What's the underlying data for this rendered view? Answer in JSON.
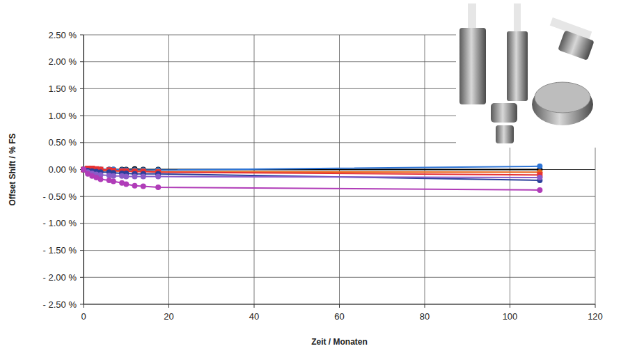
{
  "chart_data": {
    "type": "line",
    "x_label": "Zeit / Monaten",
    "y_label": "Offset Shift / % FS",
    "x": [
      0,
      1,
      2,
      3,
      4,
      6,
      7,
      9,
      10,
      12,
      14,
      17.5,
      107
    ],
    "series": [
      {
        "color": "#000000",
        "marker": "circle",
        "values": [
          0,
          0,
          0,
          0,
          0,
          0,
          0,
          0,
          0,
          0.01,
          0,
          0,
          0
        ]
      },
      {
        "color": "#2e75d6",
        "marker": "circle",
        "values": [
          0,
          0.01,
          0.01,
          0,
          0,
          0,
          0,
          -0.01,
          -0.01,
          -0.01,
          -0.01,
          -0.01,
          0.06
        ]
      },
      {
        "color": "#e8671b",
        "marker": "circle",
        "values": [
          0,
          0,
          -0.01,
          -0.01,
          -0.02,
          -0.02,
          -0.03,
          -0.03,
          -0.03,
          -0.03,
          -0.03,
          -0.04,
          -0.05
        ]
      },
      {
        "color": "#e83232",
        "marker": "square",
        "values": [
          0,
          0.02,
          0.02,
          0.01,
          0,
          -0.01,
          -0.02,
          -0.03,
          -0.03,
          -0.04,
          -0.04,
          -0.05,
          -0.1
        ]
      },
      {
        "color": "#2a3f9a",
        "marker": "circle",
        "values": [
          0,
          -0.02,
          -0.03,
          -0.04,
          -0.05,
          -0.05,
          -0.06,
          -0.07,
          -0.07,
          -0.08,
          -0.08,
          -0.08,
          -0.2
        ]
      },
      {
        "color": "#8a5cc8",
        "marker": "circle",
        "values": [
          0,
          -0.05,
          -0.07,
          -0.09,
          -0.1,
          -0.11,
          -0.12,
          -0.12,
          -0.13,
          -0.13,
          -0.13,
          -0.13,
          -0.15
        ]
      },
      {
        "color": "#b03cb8",
        "marker": "circle",
        "values": [
          0,
          -0.08,
          -0.12,
          -0.15,
          -0.18,
          -0.2,
          -0.22,
          -0.25,
          -0.27,
          -0.3,
          -0.31,
          -0.33,
          -0.38
        ]
      }
    ],
    "xlim": [
      0,
      120
    ],
    "xticks": [
      0,
      20,
      40,
      60,
      80,
      100,
      120
    ],
    "ylim": [
      -2.5,
      2.5
    ],
    "yticks": [
      {
        "value": -2.5,
        "label": "- 2.50 %"
      },
      {
        "value": -2,
        "label": "- 2.00 %"
      },
      {
        "value": -1.5,
        "label": "- 1.50 %"
      },
      {
        "value": -1,
        "label": "- 1.00 %"
      },
      {
        "value": -0.5,
        "label": "- 0.50 %"
      },
      {
        "value": 0,
        "label": "0.00 %"
      },
      {
        "value": 0.5,
        "label": "0.50 %"
      },
      {
        "value": 1,
        "label": "1.00 %"
      },
      {
        "value": 1.5,
        "label": "1.50 %"
      },
      {
        "value": 2,
        "label": "2.00 %"
      },
      {
        "value": 2.5,
        "label": "2.50 %"
      }
    ],
    "grid": true
  }
}
